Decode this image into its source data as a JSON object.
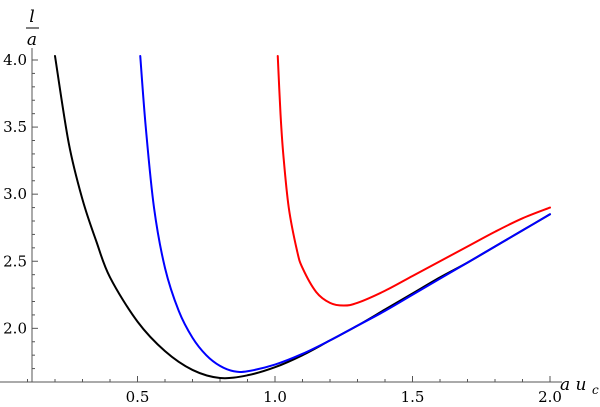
{
  "chart_data": {
    "type": "line",
    "title": "",
    "xlabel": {
      "main": "a u",
      "sub": "c"
    },
    "ylabel": {
      "numerator": "l",
      "denominator": "a"
    },
    "xlim": [
      0.0,
      2.0
    ],
    "ylim": [
      1.6,
      4.0
    ],
    "xticks": [
      0.5,
      1.0,
      1.5,
      2.0
    ],
    "xtick_labels": [
      "0.5",
      "1.0",
      "1.5",
      "2.0"
    ],
    "yticks": [
      2.0,
      2.5,
      3.0,
      3.5,
      4.0
    ],
    "ytick_labels": [
      "2.0",
      "2.5",
      "3.0",
      "3.5",
      "4.0"
    ],
    "grid": false,
    "legend": "none",
    "series": [
      {
        "color": "#000000",
        "x": [
          0.2,
          0.25,
          0.3,
          0.35,
          0.4,
          0.5,
          0.6,
          0.7,
          0.8,
          0.9,
          1.0,
          1.1,
          1.2,
          1.3,
          1.4,
          1.5,
          1.6,
          1.7,
          1.8,
          1.9,
          2.0
        ],
        "y": [
          4.03,
          3.38,
          2.96,
          2.65,
          2.38,
          2.05,
          1.83,
          1.69,
          1.63,
          1.65,
          1.71,
          1.8,
          1.91,
          2.02,
          2.14,
          2.26,
          2.38,
          2.49,
          2.61,
          2.73,
          2.85
        ]
      },
      {
        "color": "#0000ff",
        "x": [
          0.51,
          0.53,
          0.56,
          0.6,
          0.65,
          0.7,
          0.75,
          0.8,
          0.85,
          0.9,
          1.0,
          1.1,
          1.2,
          1.3,
          1.4,
          1.5,
          1.6,
          1.7,
          1.8,
          1.9,
          2.0
        ],
        "y": [
          4.03,
          3.5,
          2.9,
          2.45,
          2.13,
          1.93,
          1.8,
          1.72,
          1.68,
          1.68,
          1.73,
          1.81,
          1.91,
          2.02,
          2.13,
          2.25,
          2.37,
          2.49,
          2.61,
          2.73,
          2.85
        ]
      },
      {
        "color": "#ff0000",
        "x": [
          1.01,
          1.02,
          1.03,
          1.05,
          1.08,
          1.1,
          1.15,
          1.2,
          1.25,
          1.3,
          1.4,
          1.5,
          1.6,
          1.7,
          1.8,
          1.9,
          2.0
        ],
        "y": [
          4.03,
          3.6,
          3.3,
          2.9,
          2.58,
          2.45,
          2.27,
          2.19,
          2.17,
          2.19,
          2.28,
          2.39,
          2.5,
          2.61,
          2.72,
          2.82,
          2.9
        ]
      }
    ]
  }
}
